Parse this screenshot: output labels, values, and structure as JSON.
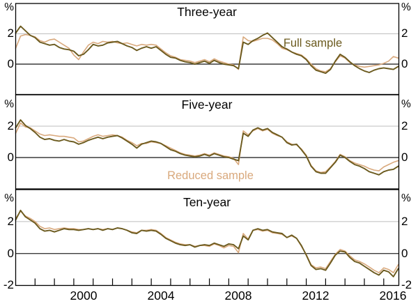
{
  "figure": {
    "panel_titles": [
      "Three-year",
      "Five-year",
      "Ten-year"
    ],
    "legend": {
      "full_label": "Full sample",
      "reduced_label": "Reduced sample"
    },
    "axis_labels": {
      "percent": "%",
      "two": "2",
      "zero": "0",
      "minus_two": "-2"
    },
    "x_labels": [
      "2000",
      "2004",
      "2008",
      "2012",
      "2016"
    ],
    "colors": {
      "full_sample": "#6B5A1E",
      "reduced_sample": "#D9A97D",
      "gridline": "#BEBEBE",
      "zero_line": "#3C3C3C",
      "border": "#000000",
      "text": "#000000",
      "background": "#FFFFFF"
    }
  },
  "chart_data": [
    {
      "type": "line",
      "title": "Three-year",
      "ylabel": "%",
      "ylim": [
        -2,
        4
      ],
      "yticks": [
        0,
        2
      ],
      "gridline_values": [
        2
      ],
      "zero_line": true,
      "xlim": [
        1997.0,
        2016.78
      ],
      "x_start": 1997.0,
      "x_step": 0.25,
      "x_tick_years": [
        1998,
        1999,
        2000,
        2001,
        2002,
        2003,
        2004,
        2005,
        2006,
        2007,
        2008,
        2009,
        2010,
        2011,
        2012,
        2013,
        2014,
        2015,
        2016
      ],
      "x_tick_labels": [
        "2000",
        "2004",
        "2008",
        "2012",
        "2016"
      ],
      "legend_position": "inside-top-right",
      "grid": false,
      "series": [
        {
          "name": "Reduced sample",
          "color": "#D9A97D",
          "values": [
            1.05,
            1.85,
            1.95,
            1.9,
            1.8,
            1.55,
            1.45,
            1.6,
            1.65,
            1.45,
            1.25,
            1.05,
            0.6,
            0.3,
            0.8,
            1.25,
            1.45,
            1.35,
            1.5,
            1.45,
            1.5,
            1.4,
            1.35,
            1.4,
            1.3,
            1.2,
            1.3,
            1.25,
            1.3,
            1.25,
            1.0,
            0.75,
            0.55,
            0.45,
            0.3,
            0.25,
            0.2,
            0.1,
            0.2,
            0.3,
            0.15,
            0.35,
            0.2,
            0.1,
            0.0,
            -0.05,
            -0.35,
            1.8,
            1.55,
            1.5,
            1.6,
            1.7,
            1.7,
            1.6,
            1.35,
            1.05,
            0.95,
            0.8,
            0.7,
            0.6,
            0.35,
            0.0,
            -0.3,
            -0.45,
            -0.5,
            -0.3,
            0.15,
            0.55,
            0.4,
            0.1,
            -0.05,
            -0.15,
            -0.2,
            -0.15,
            -0.1,
            -0.05,
            0.05,
            0.2,
            0.5,
            0.4
          ]
        },
        {
          "name": "Full sample",
          "color": "#6B5A1E",
          "values": [
            2.05,
            2.5,
            2.2,
            1.9,
            1.75,
            1.45,
            1.35,
            1.25,
            1.3,
            1.1,
            1.0,
            0.95,
            0.85,
            0.55,
            0.65,
            0.95,
            1.3,
            1.2,
            1.25,
            1.4,
            1.45,
            1.5,
            1.35,
            1.2,
            1.1,
            0.9,
            1.05,
            1.15,
            1.05,
            1.15,
            0.9,
            0.65,
            0.45,
            0.4,
            0.25,
            0.15,
            0.1,
            0.0,
            0.1,
            0.2,
            0.05,
            0.25,
            0.1,
            0.0,
            -0.05,
            -0.1,
            -0.3,
            1.45,
            1.3,
            1.55,
            1.7,
            1.9,
            2.05,
            1.75,
            1.45,
            1.15,
            1.0,
            0.8,
            0.65,
            0.55,
            0.3,
            -0.1,
            -0.4,
            -0.5,
            -0.6,
            -0.35,
            0.2,
            0.65,
            0.45,
            0.15,
            -0.1,
            -0.3,
            -0.45,
            -0.55,
            -0.4,
            -0.3,
            -0.25,
            -0.3,
            -0.35,
            -0.15
          ]
        }
      ]
    },
    {
      "type": "line",
      "title": "Five-year",
      "ylabel": "%",
      "ylim": [
        -2,
        4
      ],
      "yticks": [
        0,
        2
      ],
      "gridline_values": [
        2
      ],
      "zero_line": true,
      "xlim": [
        1997.0,
        2016.78
      ],
      "x_start": 1997.0,
      "x_step": 0.25,
      "x_tick_years": [],
      "legend_position": "inside-bottom-center",
      "grid": false,
      "series": [
        {
          "name": "Reduced sample",
          "color": "#D9A97D",
          "values": [
            1.55,
            2.2,
            1.95,
            1.9,
            1.7,
            1.5,
            1.4,
            1.45,
            1.4,
            1.35,
            1.35,
            1.3,
            1.25,
            1.0,
            1.05,
            1.2,
            1.35,
            1.45,
            1.35,
            1.4,
            1.45,
            1.4,
            1.3,
            1.1,
            0.95,
            0.75,
            0.9,
            0.9,
            1.0,
            0.95,
            0.9,
            0.75,
            0.6,
            0.45,
            0.3,
            0.2,
            0.15,
            0.1,
            0.15,
            0.25,
            0.15,
            0.3,
            0.2,
            0.1,
            0.05,
            -0.05,
            -0.45,
            1.7,
            1.45,
            1.7,
            1.85,
            1.7,
            1.8,
            1.55,
            1.4,
            1.3,
            1.0,
            0.85,
            0.8,
            0.55,
            0.15,
            -0.5,
            -0.85,
            -0.95,
            -0.9,
            -0.6,
            -0.25,
            0.2,
            0.05,
            -0.2,
            -0.35,
            -0.45,
            -0.55,
            -0.7,
            -0.8,
            -0.85,
            -0.6,
            -0.45,
            -0.3,
            -0.2
          ]
        },
        {
          "name": "Full sample",
          "color": "#6B5A1E",
          "values": [
            1.9,
            2.4,
            2.05,
            1.85,
            1.6,
            1.3,
            1.15,
            1.2,
            1.1,
            1.05,
            1.15,
            1.05,
            1.0,
            0.85,
            0.95,
            1.1,
            1.2,
            1.3,
            1.2,
            1.3,
            1.35,
            1.4,
            1.25,
            1.05,
            0.85,
            0.6,
            0.85,
            0.95,
            1.05,
            1.0,
            0.9,
            0.7,
            0.5,
            0.4,
            0.25,
            0.15,
            0.1,
            0.05,
            0.1,
            0.2,
            0.1,
            0.25,
            0.15,
            0.05,
            0.0,
            -0.1,
            -0.2,
            1.55,
            1.35,
            1.75,
            1.9,
            1.75,
            1.85,
            1.6,
            1.45,
            1.3,
            0.95,
            0.8,
            0.85,
            0.5,
            0.1,
            -0.55,
            -0.9,
            -1.0,
            -1.0,
            -0.65,
            -0.3,
            0.15,
            0.0,
            -0.25,
            -0.45,
            -0.55,
            -0.7,
            -0.9,
            -1.0,
            -1.1,
            -0.9,
            -0.8,
            -0.75,
            -0.55
          ]
        }
      ]
    },
    {
      "type": "line",
      "title": "Ten-year",
      "ylabel": "%",
      "ylim": [
        -2,
        4
      ],
      "yticks": [
        -2,
        0,
        2
      ],
      "gridline_values": [
        2
      ],
      "zero_line": true,
      "xlim": [
        1997.0,
        2016.78
      ],
      "x_start": 1997.0,
      "x_step": 0.25,
      "x_tick_years": [
        1998,
        1999,
        2000,
        2001,
        2002,
        2003,
        2004,
        2005,
        2006,
        2007,
        2008,
        2009,
        2010,
        2011,
        2012,
        2013,
        2014,
        2015,
        2016
      ],
      "legend_position": "none",
      "grid": false,
      "series": [
        {
          "name": "Reduced sample",
          "color": "#D9A97D",
          "values": [
            2.2,
            2.65,
            2.35,
            2.2,
            2.0,
            1.7,
            1.55,
            1.6,
            1.5,
            1.55,
            1.6,
            1.55,
            1.55,
            1.5,
            1.5,
            1.55,
            1.5,
            1.55,
            1.5,
            1.55,
            1.5,
            1.6,
            1.55,
            1.45,
            1.35,
            1.3,
            1.45,
            1.45,
            1.5,
            1.45,
            1.25,
            1.0,
            0.85,
            0.7,
            0.6,
            0.55,
            0.55,
            0.45,
            0.5,
            0.5,
            0.45,
            0.6,
            0.5,
            0.35,
            0.5,
            0.45,
            0.05,
            1.25,
            0.9,
            1.45,
            1.5,
            1.4,
            1.45,
            1.3,
            1.25,
            1.2,
            1.0,
            1.1,
            0.95,
            0.45,
            -0.05,
            -0.7,
            -0.9,
            -0.85,
            -0.95,
            -0.5,
            -0.05,
            0.25,
            0.15,
            -0.15,
            -0.4,
            -0.5,
            -0.65,
            -0.85,
            -1.05,
            -1.2,
            -0.9,
            -1.0,
            -1.2,
            -0.7
          ]
        },
        {
          "name": "Full sample",
          "color": "#6B5A1E",
          "values": [
            2.1,
            2.7,
            2.3,
            2.1,
            1.9,
            1.55,
            1.4,
            1.45,
            1.35,
            1.45,
            1.55,
            1.5,
            1.5,
            1.45,
            1.5,
            1.55,
            1.5,
            1.55,
            1.45,
            1.55,
            1.5,
            1.6,
            1.55,
            1.45,
            1.3,
            1.25,
            1.45,
            1.4,
            1.45,
            1.4,
            1.2,
            0.95,
            0.8,
            0.65,
            0.55,
            0.5,
            0.55,
            0.4,
            0.5,
            0.55,
            0.5,
            0.65,
            0.55,
            0.45,
            0.6,
            0.55,
            0.3,
            1.1,
            0.85,
            1.45,
            1.55,
            1.45,
            1.5,
            1.35,
            1.3,
            1.25,
            1.0,
            1.15,
            0.95,
            0.5,
            -0.1,
            -0.75,
            -1.0,
            -0.95,
            -1.05,
            -0.6,
            -0.1,
            0.15,
            0.1,
            -0.25,
            -0.5,
            -0.6,
            -0.8,
            -1.0,
            -1.2,
            -1.35,
            -1.05,
            -1.15,
            -1.45,
            -0.95
          ]
        }
      ]
    }
  ]
}
